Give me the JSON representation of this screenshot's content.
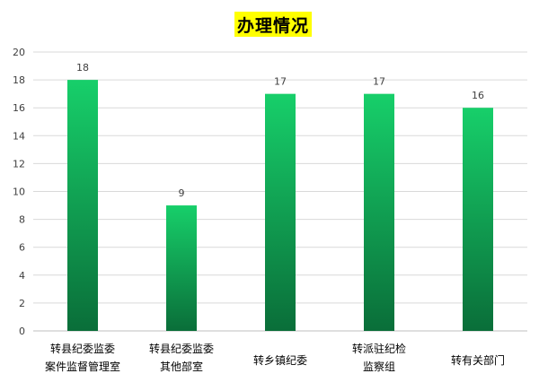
{
  "chart_data": {
    "type": "bar",
    "title": "办理情况",
    "categories": [
      [
        "转县纪委监委",
        "案件监督管理室"
      ],
      [
        "转县纪委监委",
        "其他部室"
      ],
      [
        "转乡镇纪委"
      ],
      [
        "转派驻纪检",
        "监察组"
      ],
      [
        "转有关部门"
      ]
    ],
    "values": [
      18,
      9,
      17,
      17,
      16
    ],
    "ylim": [
      0,
      20
    ],
    "yticks": [
      0,
      2,
      4,
      6,
      8,
      10,
      12,
      14,
      16,
      18,
      20
    ],
    "grid": true,
    "legend": "none",
    "colors": {
      "bar_top": "#17cf6a",
      "bar_bottom": "#0a6e39",
      "grid": "#d9d9d9",
      "axis": "#bfbfbf",
      "title_highlight": "#ffff00",
      "text": "#404040"
    }
  }
}
